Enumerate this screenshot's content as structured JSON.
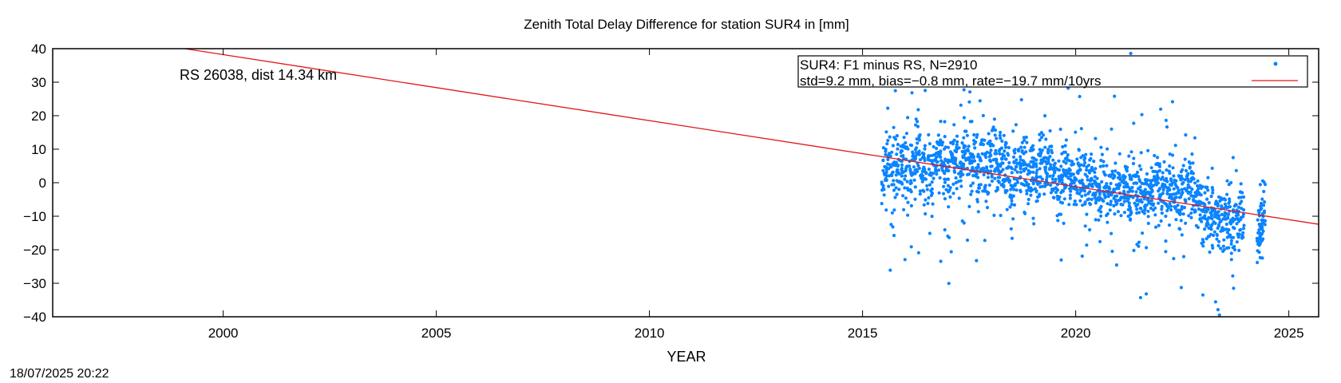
{
  "chart_data": {
    "type": "scatter",
    "title": "Zenith Total Delay Difference for station SUR4 in [mm]",
    "xlabel": "YEAR",
    "ylabel": "",
    "xlim": [
      1996,
      2025.7
    ],
    "ylim": [
      -40,
      40
    ],
    "x_ticks": [
      2000,
      2005,
      2010,
      2015,
      2020,
      2025
    ],
    "y_ticks": [
      40,
      30,
      20,
      10,
      0,
      -10,
      -20,
      -30,
      -40
    ],
    "grid": false,
    "legend_position": "top-right",
    "annotation": "RS 26038, dist 14.34 km",
    "points_color": "#0a84ff",
    "trend_color": "#e01818",
    "series": [
      {
        "name": "SUR4: F1 minus RS, N=2910",
        "kind": "points",
        "x": [
          2015.5,
          2015.6,
          2015.7,
          2015.8,
          2015.9,
          2016.0,
          2016.1,
          2016.2,
          2016.3,
          2016.4,
          2016.5,
          2016.6,
          2016.7,
          2016.8,
          2016.9,
          2017.0,
          2017.1,
          2017.2,
          2017.3,
          2017.4,
          2017.5,
          2017.6,
          2017.7,
          2017.8,
          2017.9,
          2018.0,
          2018.1,
          2018.2,
          2018.3,
          2018.4,
          2018.5,
          2018.6,
          2018.7,
          2018.8,
          2018.9,
          2019.0,
          2019.1,
          2019.2,
          2019.3,
          2019.4,
          2019.5,
          2019.6,
          2019.7,
          2019.8,
          2019.9,
          2020.0,
          2020.1,
          2020.2,
          2020.3,
          2020.4,
          2020.5,
          2020.6,
          2020.7,
          2020.8,
          2020.9,
          2021.0,
          2021.1,
          2021.2,
          2021.3,
          2021.4,
          2021.5,
          2021.6,
          2021.7,
          2021.8,
          2021.9,
          2022.0,
          2022.1,
          2022.2,
          2022.3,
          2022.4,
          2022.5,
          2022.6,
          2022.7,
          2022.8,
          2022.9,
          2023.0,
          2023.1,
          2023.2,
          2023.3,
          2023.4,
          2023.5,
          2023.6,
          2023.7,
          2023.8,
          2023.9,
          2024.3,
          2024.35,
          2024.4
        ],
        "y": [
          2,
          5,
          0,
          6,
          4,
          7,
          3,
          6,
          9,
          2,
          4,
          1,
          5,
          8,
          6,
          3,
          7,
          5,
          4,
          9,
          5,
          6,
          2,
          7,
          3,
          7,
          8,
          6,
          5,
          4,
          -3,
          2,
          6,
          5,
          1,
          4,
          2,
          7,
          3,
          5,
          0,
          -1,
          2,
          3,
          1,
          0,
          2,
          1,
          -1,
          0,
          -1,
          -2,
          0,
          -3,
          -2,
          -1,
          -4,
          -2,
          -3,
          -1,
          -2,
          -4,
          -3,
          -2,
          -1,
          -2,
          -3,
          -1,
          -2,
          -4,
          -3,
          -1,
          -2,
          -5,
          -6,
          -10,
          -9,
          -11,
          -10,
          -12,
          -11,
          -9,
          -13,
          -10,
          -8,
          -12,
          -15,
          -10
        ]
      },
      {
        "name": "std=9.2 mm, bias=−0.8 mm, rate=−19.7 mm/10yrs",
        "kind": "line",
        "x": [
          1999.1,
          2025.7
        ],
        "y": [
          40,
          -12.4
        ]
      }
    ]
  },
  "timestamp": "18/07/2025 20:22"
}
